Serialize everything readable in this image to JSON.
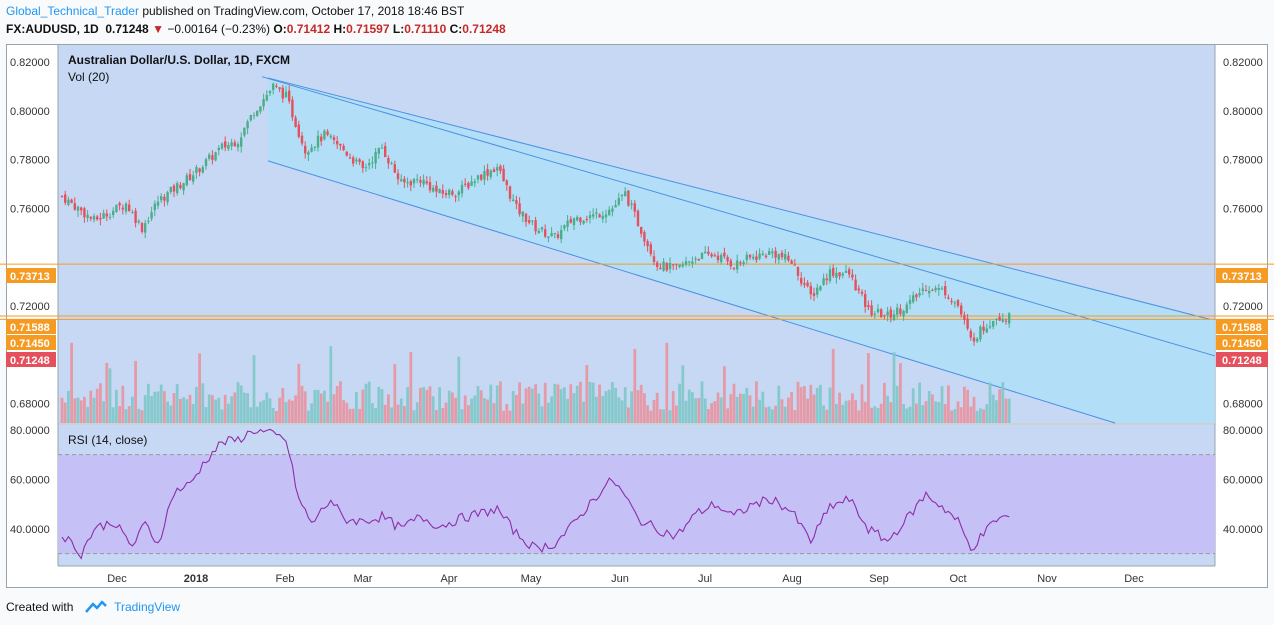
{
  "header": {
    "author": "Global_Technical_Trader",
    "published": "published on TradingView.com, October 17, 2018 18:46 BST",
    "symbol": "FX:AUDUSD, 1D",
    "last": "0.71248",
    "change": "−0.00164 (−0.23%)",
    "o_label": "O:",
    "o": "0.71412",
    "h_label": "H:",
    "h": "0.71597",
    "l_label": "L:",
    "l": "0.71110",
    "c_label": "C:",
    "c": "0.71248"
  },
  "legend": {
    "title": "Australian Dollar/U.S. Dollar, 1D, FXCM",
    "vol": "Vol (20)",
    "rsi": "RSI (14, close)"
  },
  "footer": {
    "created_with": "Created with",
    "brand": "TradingView"
  },
  "colors": {
    "bg_panel": "#c7d8f5",
    "channel": "#aee0f7",
    "channel_line": "#4a90e2",
    "up": "#4bae8a",
    "down": "#e5505d",
    "vol_up": "#7ec8c8",
    "vol_down": "#e8949e",
    "rsi_line": "#8e2ea8",
    "rsi_band": "#c5c0f6",
    "hline": "#f59b23",
    "axis": "#9aa3ad"
  },
  "chart_data": [
    {
      "type": "candlestick",
      "title": "Australian Dollar/U.S. Dollar, 1D, FXCM",
      "ylim": [
        0.672,
        0.827
      ],
      "y_ticks": [
        "0.82000",
        "0.80000",
        "0.78000",
        "0.76000",
        "0.72000",
        "0.68000"
      ],
      "x_ticks": [
        "Dec",
        "2018",
        "Feb",
        "Mar",
        "Apr",
        "May",
        "Jun",
        "Jul",
        "Aug",
        "Sep",
        "Oct",
        "Nov",
        "Dec"
      ],
      "close_anchors": [
        [
          0,
          0.765
        ],
        [
          10,
          0.755
        ],
        [
          20,
          0.762
        ],
        [
          25,
          0.752
        ],
        [
          30,
          0.763
        ],
        [
          40,
          0.773
        ],
        [
          50,
          0.785
        ],
        [
          55,
          0.788
        ],
        [
          60,
          0.8
        ],
        [
          66,
          0.81
        ],
        [
          70,
          0.806
        ],
        [
          76,
          0.784
        ],
        [
          82,
          0.79
        ],
        [
          88,
          0.784
        ],
        [
          94,
          0.776
        ],
        [
          100,
          0.785
        ],
        [
          106,
          0.77
        ],
        [
          112,
          0.772
        ],
        [
          118,
          0.766
        ],
        [
          124,
          0.767
        ],
        [
          130,
          0.773
        ],
        [
          136,
          0.777
        ],
        [
          142,
          0.76
        ],
        [
          148,
          0.752
        ],
        [
          154,
          0.748
        ],
        [
          160,
          0.756
        ],
        [
          166,
          0.757
        ],
        [
          172,
          0.76
        ],
        [
          176,
          0.766
        ],
        [
          180,
          0.754
        ],
        [
          186,
          0.737
        ],
        [
          192,
          0.735
        ],
        [
          198,
          0.74
        ],
        [
          204,
          0.741
        ],
        [
          210,
          0.737
        ],
        [
          216,
          0.74
        ],
        [
          222,
          0.742
        ],
        [
          228,
          0.738
        ],
        [
          234,
          0.724
        ],
        [
          240,
          0.734
        ],
        [
          246,
          0.733
        ],
        [
          252,
          0.718
        ],
        [
          258,
          0.716
        ],
        [
          264,
          0.72
        ],
        [
          270,
          0.728
        ],
        [
          276,
          0.726
        ],
        [
          280,
          0.72
        ],
        [
          284,
          0.706
        ],
        [
          288,
          0.711
        ],
        [
          292,
          0.716
        ],
        [
          296,
          0.715
        ]
      ],
      "horizontal_levels": [
        {
          "label": "0.73713",
          "value": 0.73713,
          "color": "#f59b23"
        },
        {
          "label": "0.71588",
          "value": 0.71588,
          "color": "#f59b23"
        },
        {
          "label": "0.71450",
          "value": 0.7145,
          "color": "#f59b23"
        },
        {
          "label": "0.71248",
          "value": 0.71248,
          "color": "#e5505d"
        }
      ],
      "channel": {
        "upper": [
          [
            60,
            0.8135
          ],
          [
            1210,
            0.7145
          ]
        ],
        "lower": [
          [
            60,
            0.7795
          ],
          [
            1115,
            0.672
          ]
        ],
        "upper_ray": [
          [
            262,
            0.814
          ],
          [
            1215,
            0.6995
          ]
        ]
      },
      "volume": {
        "name": "Vol (20)"
      }
    },
    {
      "type": "line",
      "title": "RSI (14, close)",
      "ylim": [
        25,
        82
      ],
      "y_ticks": [
        "80.0000",
        "60.0000",
        "40.0000"
      ],
      "band": [
        30,
        70
      ],
      "rsi_anchors": [
        [
          0,
          38
        ],
        [
          6,
          30
        ],
        [
          10,
          40
        ],
        [
          16,
          43
        ],
        [
          22,
          33
        ],
        [
          26,
          42
        ],
        [
          30,
          34
        ],
        [
          35,
          55
        ],
        [
          40,
          58
        ],
        [
          45,
          68
        ],
        [
          50,
          75
        ],
        [
          55,
          76
        ],
        [
          60,
          80
        ],
        [
          66,
          78
        ],
        [
          70,
          76
        ],
        [
          74,
          52
        ],
        [
          78,
          42
        ],
        [
          84,
          52
        ],
        [
          88,
          44
        ],
        [
          94,
          43
        ],
        [
          100,
          45
        ],
        [
          106,
          40
        ],
        [
          112,
          45
        ],
        [
          118,
          41
        ],
        [
          124,
          44
        ],
        [
          130,
          46
        ],
        [
          136,
          48
        ],
        [
          142,
          38
        ],
        [
          148,
          32
        ],
        [
          154,
          34
        ],
        [
          160,
          42
        ],
        [
          166,
          52
        ],
        [
          172,
          60
        ],
        [
          176,
          53
        ],
        [
          180,
          44
        ],
        [
          186,
          40
        ],
        [
          192,
          37
        ],
        [
          198,
          46
        ],
        [
          204,
          50
        ],
        [
          210,
          45
        ],
        [
          216,
          50
        ],
        [
          222,
          52
        ],
        [
          228,
          47
        ],
        [
          234,
          35
        ],
        [
          240,
          49
        ],
        [
          246,
          52
        ],
        [
          252,
          40
        ],
        [
          258,
          35
        ],
        [
          264,
          44
        ],
        [
          270,
          54
        ],
        [
          276,
          48
        ],
        [
          280,
          43
        ],
        [
          284,
          32
        ],
        [
          288,
          38
        ],
        [
          292,
          44
        ],
        [
          296,
          45
        ]
      ]
    }
  ]
}
